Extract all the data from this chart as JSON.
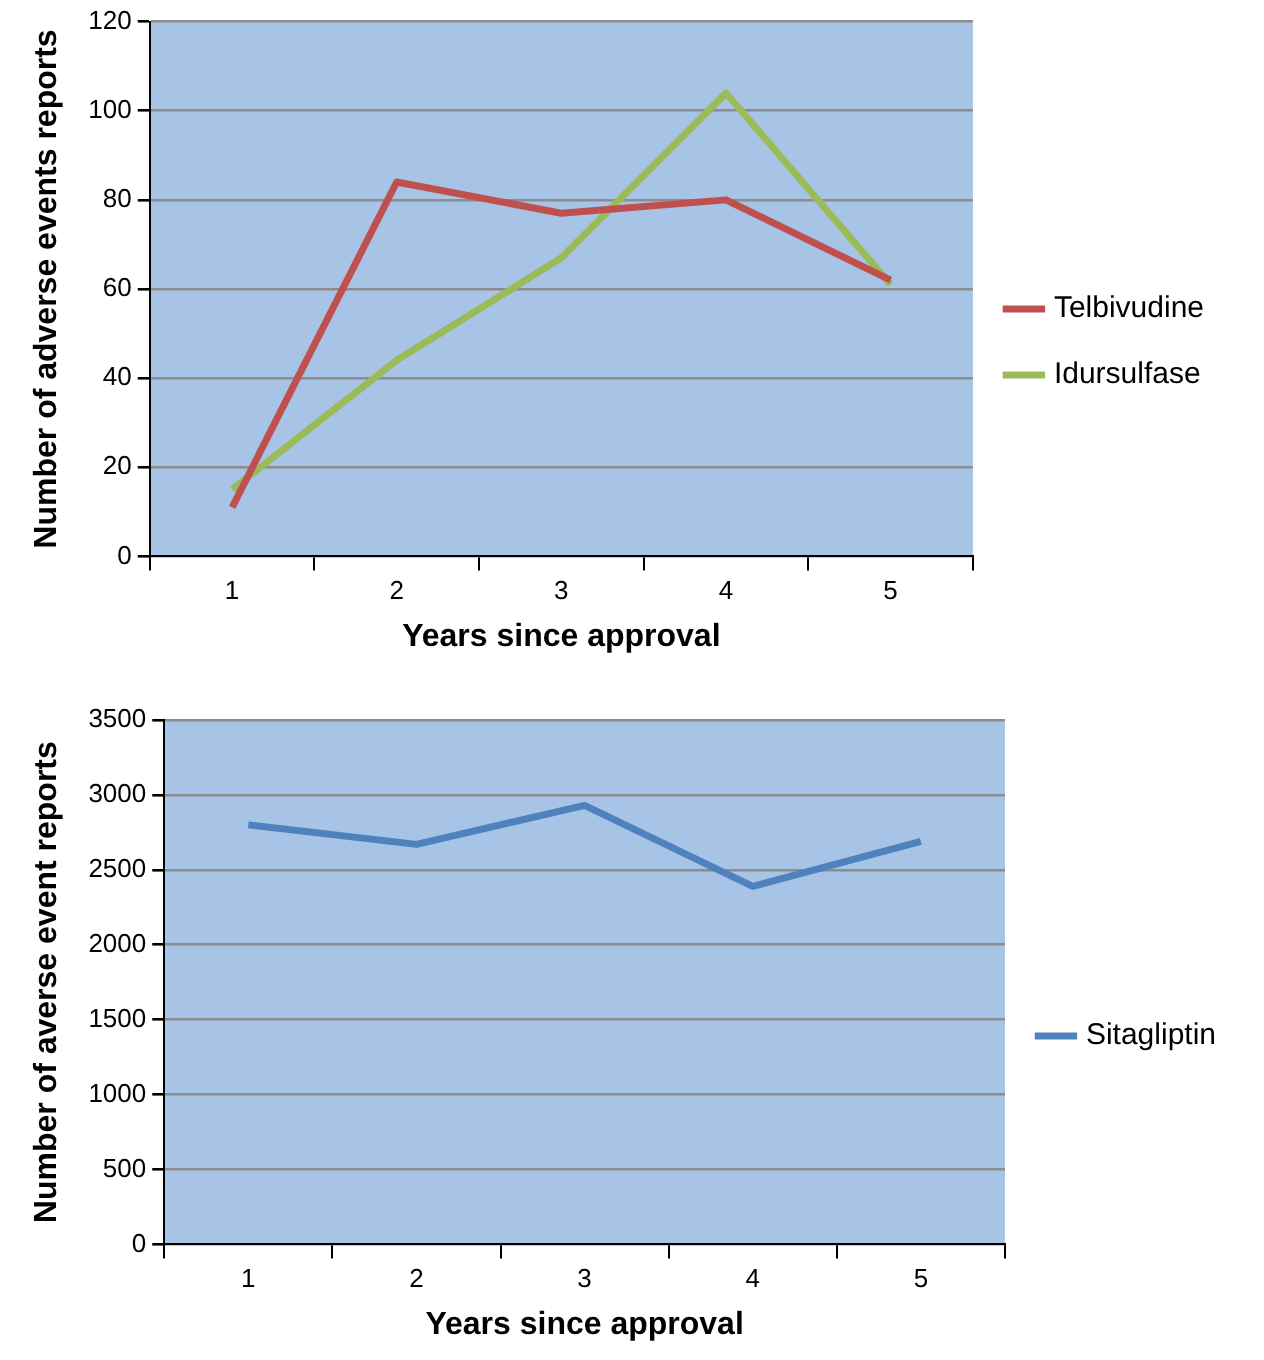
{
  "chart_data": [
    {
      "type": "line",
      "xlabel": "Years since approval",
      "ylabel": "Number of adverse events reports",
      "categories": [
        "1",
        "2",
        "3",
        "4",
        "5"
      ],
      "series": [
        {
          "name": "Telbivudine",
          "color": "#c0504d",
          "values": [
            11,
            84,
            77,
            80,
            62
          ]
        },
        {
          "name": "Idursulfase",
          "color": "#9bbb59",
          "values": [
            15,
            44,
            67,
            104,
            61
          ]
        }
      ],
      "ylim": [
        0,
        120
      ],
      "yticks": [
        0,
        20,
        40,
        60,
        80,
        100,
        120
      ],
      "grid": "y",
      "legend": "right",
      "marker": "none"
    },
    {
      "type": "line",
      "xlabel": "Years since approval",
      "ylabel": "Number of averse event reports",
      "categories": [
        "1",
        "2",
        "3",
        "4",
        "5"
      ],
      "series": [
        {
          "name": "Sitagliptin",
          "color": "#4f81bd",
          "values": [
            2800,
            2670,
            2930,
            2390,
            2690
          ]
        }
      ],
      "ylim": [
        0,
        3500
      ],
      "yticks": [
        0,
        500,
        1000,
        1500,
        2000,
        2500,
        3000,
        3500
      ],
      "grid": "y",
      "legend": "right",
      "marker": "none"
    }
  ]
}
